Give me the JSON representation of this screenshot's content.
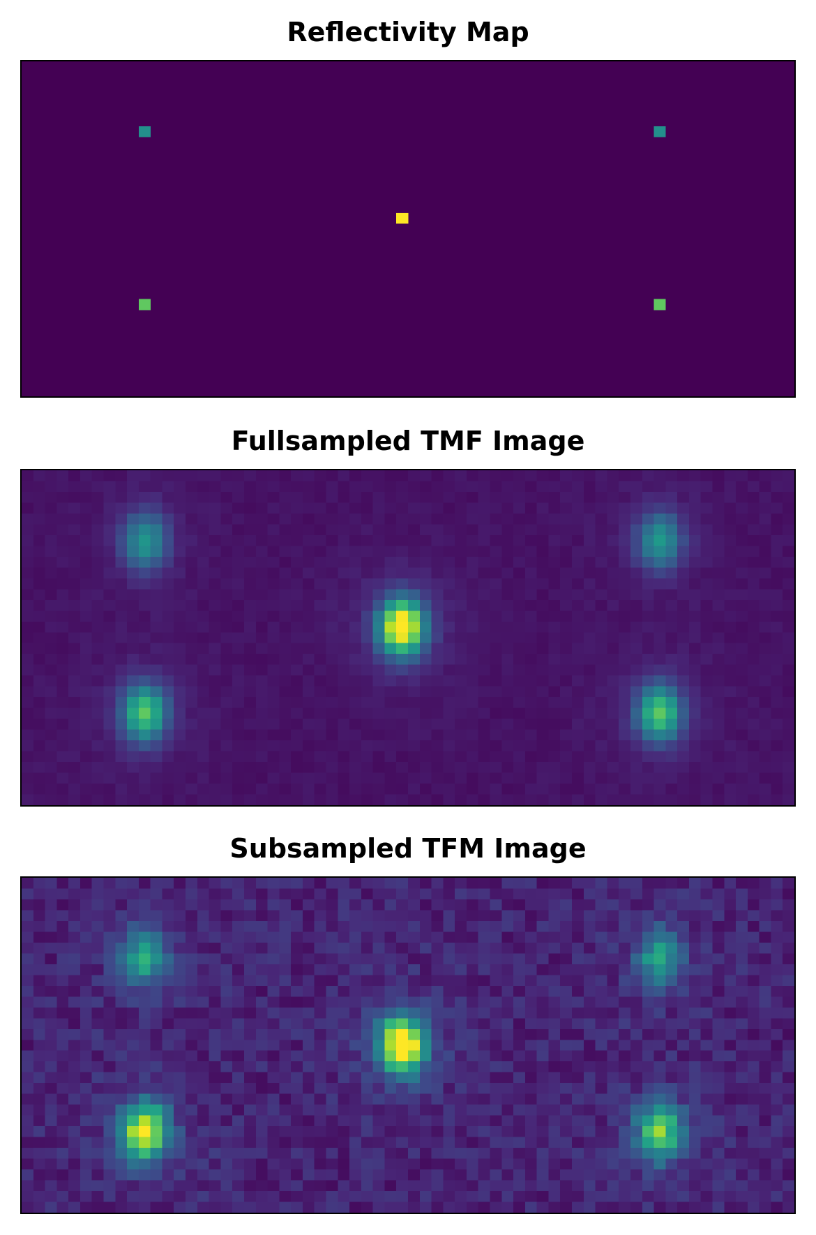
{
  "chart_data": [
    {
      "type": "heatmap",
      "title": "Reflectivity Map",
      "grid_size": [
        66,
        31
      ],
      "colormap": "viridis",
      "background_value": 0.0,
      "xticks": "none",
      "yticks": "none",
      "grid": false,
      "points": [
        {
          "col": 10,
          "row": 6,
          "value": 0.5
        },
        {
          "col": 54,
          "row": 6,
          "value": 0.5
        },
        {
          "col": 32,
          "row": 14,
          "value": 1.0
        },
        {
          "col": 10,
          "row": 22,
          "value": 0.75
        },
        {
          "col": 54,
          "row": 22,
          "value": 0.75
        }
      ]
    },
    {
      "type": "heatmap",
      "title": "Fullsampled TMF Image",
      "grid_size": [
        66,
        31
      ],
      "colormap": "viridis",
      "noise_level": 0.04,
      "xticks": "none",
      "yticks": "none",
      "grid": false,
      "peaks": [
        {
          "col": 10,
          "row": 6,
          "value": 0.45
        },
        {
          "col": 54,
          "row": 6,
          "value": 0.45
        },
        {
          "col": 32,
          "row": 14,
          "value": 1.0
        },
        {
          "col": 10,
          "row": 22,
          "value": 0.65
        },
        {
          "col": 54,
          "row": 22,
          "value": 0.65
        }
      ]
    },
    {
      "type": "heatmap",
      "title": "Subsampled TFM Image",
      "grid_size": [
        66,
        31
      ],
      "colormap": "viridis",
      "noise_level": 0.14,
      "xticks": "none",
      "yticks": "none",
      "grid": false,
      "peaks": [
        {
          "col": 10,
          "row": 7,
          "value": 0.45
        },
        {
          "col": 54,
          "row": 7,
          "value": 0.45
        },
        {
          "col": 32,
          "row": 15,
          "value": 1.0
        },
        {
          "col": 10,
          "row": 23,
          "value": 0.85
        },
        {
          "col": 54,
          "row": 23,
          "value": 0.65
        }
      ]
    }
  ]
}
